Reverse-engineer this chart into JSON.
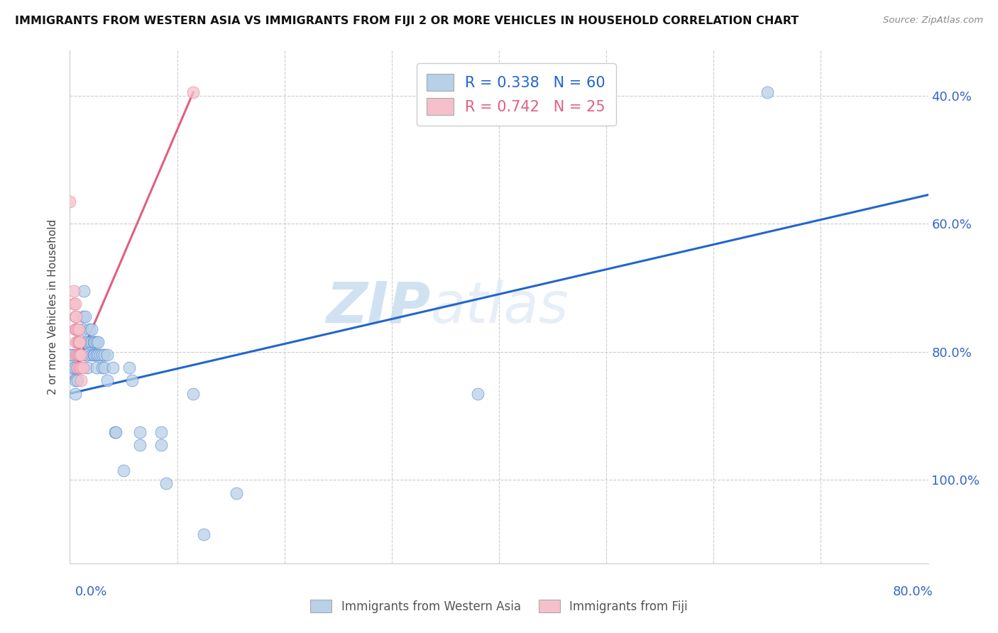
{
  "title": "IMMIGRANTS FROM WESTERN ASIA VS IMMIGRANTS FROM FIJI 2 OR MORE VEHICLES IN HOUSEHOLD CORRELATION CHART",
  "source": "Source: ZipAtlas.com",
  "ylabel": "2 or more Vehicles in Household",
  "ytick_labels": [
    "100.0%",
    "80.0%",
    "60.0%",
    "40.0%"
  ],
  "xlim": [
    0.0,
    0.8
  ],
  "ylim": [
    0.27,
    1.07
  ],
  "western_asia_R": 0.338,
  "western_asia_N": 60,
  "fiji_R": 0.742,
  "fiji_N": 25,
  "western_asia_color": "#b8d0e8",
  "fiji_color": "#f5c0cb",
  "trendline_western_asia_color": "#2266cc",
  "trendline_fiji_color": "#e06080",
  "watermark_zip": "ZIP",
  "watermark_atlas": "atlas",
  "wa_trend_x0": 0.0,
  "wa_trend_y0": 0.535,
  "wa_trend_x1": 0.8,
  "wa_trend_y1": 0.845,
  "fiji_trend_x0": 0.0,
  "fiji_trend_y0": 0.555,
  "fiji_trend_x1": 0.115,
  "fiji_trend_y1": 1.005,
  "western_asia_points": [
    [
      0.002,
      0.595
    ],
    [
      0.002,
      0.57
    ],
    [
      0.003,
      0.595
    ],
    [
      0.003,
      0.575
    ],
    [
      0.005,
      0.575
    ],
    [
      0.005,
      0.555
    ],
    [
      0.005,
      0.535
    ],
    [
      0.007,
      0.595
    ],
    [
      0.007,
      0.575
    ],
    [
      0.007,
      0.555
    ],
    [
      0.008,
      0.615
    ],
    [
      0.008,
      0.595
    ],
    [
      0.009,
      0.595
    ],
    [
      0.009,
      0.575
    ],
    [
      0.012,
      0.655
    ],
    [
      0.012,
      0.635
    ],
    [
      0.013,
      0.695
    ],
    [
      0.014,
      0.655
    ],
    [
      0.014,
      0.615
    ],
    [
      0.015,
      0.595
    ],
    [
      0.015,
      0.615
    ],
    [
      0.016,
      0.595
    ],
    [
      0.016,
      0.575
    ],
    [
      0.018,
      0.635
    ],
    [
      0.018,
      0.615
    ],
    [
      0.02,
      0.635
    ],
    [
      0.02,
      0.615
    ],
    [
      0.02,
      0.595
    ],
    [
      0.022,
      0.615
    ],
    [
      0.022,
      0.595
    ],
    [
      0.023,
      0.615
    ],
    [
      0.023,
      0.595
    ],
    [
      0.025,
      0.615
    ],
    [
      0.025,
      0.595
    ],
    [
      0.025,
      0.575
    ],
    [
      0.026,
      0.615
    ],
    [
      0.026,
      0.595
    ],
    [
      0.028,
      0.595
    ],
    [
      0.03,
      0.595
    ],
    [
      0.03,
      0.575
    ],
    [
      0.032,
      0.595
    ],
    [
      0.032,
      0.575
    ],
    [
      0.035,
      0.595
    ],
    [
      0.035,
      0.555
    ],
    [
      0.04,
      0.575
    ],
    [
      0.042,
      0.475
    ],
    [
      0.043,
      0.475
    ],
    [
      0.05,
      0.415
    ],
    [
      0.055,
      0.575
    ],
    [
      0.058,
      0.555
    ],
    [
      0.065,
      0.475
    ],
    [
      0.065,
      0.455
    ],
    [
      0.085,
      0.475
    ],
    [
      0.085,
      0.455
    ],
    [
      0.09,
      0.395
    ],
    [
      0.115,
      0.535
    ],
    [
      0.125,
      0.315
    ],
    [
      0.155,
      0.38
    ],
    [
      0.38,
      0.535
    ],
    [
      0.65,
      1.005
    ]
  ],
  "fiji_points": [
    [
      0.0,
      0.835
    ],
    [
      0.004,
      0.695
    ],
    [
      0.004,
      0.675
    ],
    [
      0.005,
      0.675
    ],
    [
      0.005,
      0.655
    ],
    [
      0.005,
      0.635
    ],
    [
      0.006,
      0.655
    ],
    [
      0.006,
      0.635
    ],
    [
      0.006,
      0.615
    ],
    [
      0.006,
      0.595
    ],
    [
      0.007,
      0.635
    ],
    [
      0.007,
      0.615
    ],
    [
      0.007,
      0.595
    ],
    [
      0.007,
      0.575
    ],
    [
      0.008,
      0.635
    ],
    [
      0.008,
      0.615
    ],
    [
      0.008,
      0.595
    ],
    [
      0.009,
      0.615
    ],
    [
      0.009,
      0.595
    ],
    [
      0.009,
      0.575
    ],
    [
      0.01,
      0.595
    ],
    [
      0.01,
      0.575
    ],
    [
      0.01,
      0.555
    ],
    [
      0.012,
      0.575
    ],
    [
      0.115,
      1.005
    ]
  ]
}
